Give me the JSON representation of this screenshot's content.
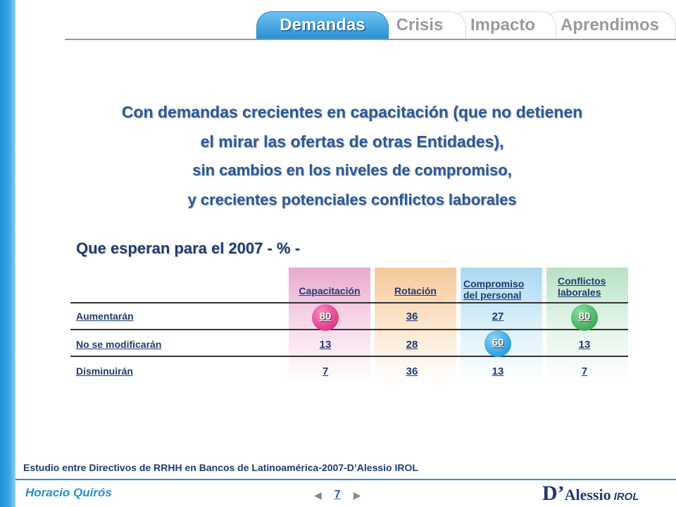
{
  "tabs": [
    "Demandas",
    "Crisis",
    "Impacto",
    "Aprendimos"
  ],
  "headline": [
    "Con demandas crecientes en capacitación (que no detienen",
    "el mirar las ofertas de otras Entidades),",
    "sin cambios en los niveles de compromiso,",
    "y crecientes potenciales conflictos laborales"
  ],
  "subtitle": "Que esperan para el 2007 - % -",
  "table": {
    "columns": [
      "Capacitación",
      "Rotación",
      "Compromiso del personal",
      "Conflictos laborales"
    ],
    "column_colors": [
      "#f2c6de",
      "#fadbb8",
      "#bfe3f5",
      "#cfecd9"
    ],
    "rows": [
      {
        "label": "Aumentarán",
        "values": [
          "80",
          "36",
          "27",
          "80"
        ]
      },
      {
        "label": "No se modificarán",
        "values": [
          "13",
          "28",
          "60",
          "13"
        ]
      },
      {
        "label": "Disminuirán",
        "values": [
          "7",
          "36",
          "13",
          "7"
        ]
      }
    ],
    "highlight_colors": {
      "pink": "#e23b8a",
      "blue": "#2a9fe0",
      "green": "#3fae5a"
    }
  },
  "footnote": "Estudio entre Directivos de RRHH en Bancos de Latinoamérica-2007-D’Alessio IROL",
  "author": "Horacio Quirós",
  "page_number": "7",
  "logo": {
    "d": "D’",
    "name": "Alessio",
    "suffix": "IROL"
  }
}
